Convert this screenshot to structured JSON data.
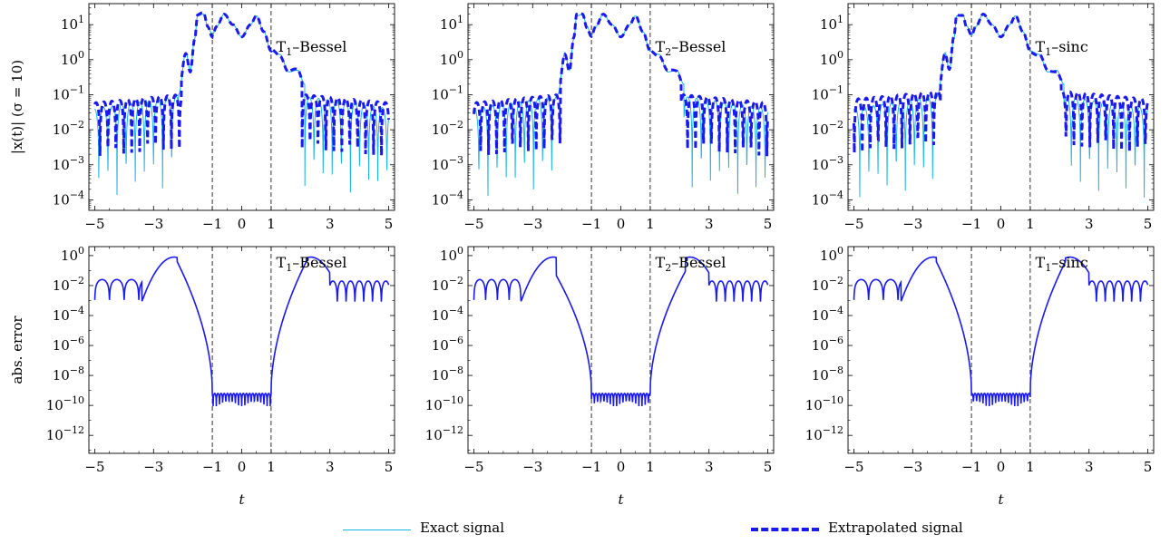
{
  "chart_data": {
    "type": "line",
    "legend": {
      "position": "bottom",
      "items": [
        {
          "label": "Exact signal",
          "color": "#1ab3e6",
          "style": "solid thin"
        },
        {
          "label": "Extrapolated signal",
          "color": "#1a1aee",
          "style": "dashed thick"
        }
      ]
    },
    "rows": [
      {
        "ylabel": "|x(t)| (σ = 10)",
        "ylim_exp": [
          -4.3,
          1.6
        ],
        "y_ticks": [
          {
            "exp": 1,
            "base": "10",
            "sup": "1"
          },
          {
            "exp": 0,
            "base": "10",
            "sup": "0"
          },
          {
            "exp": -1,
            "base": "10",
            "sup": "−1"
          },
          {
            "exp": -2,
            "base": "10",
            "sup": "−2"
          },
          {
            "exp": -3,
            "base": "10",
            "sup": "−3"
          },
          {
            "exp": -4,
            "base": "10",
            "sup": "−4"
          }
        ]
      },
      {
        "ylabel": "abs. error",
        "ylim_exp": [
          -13.2,
          0.6
        ],
        "y_ticks": [
          {
            "exp": 0,
            "base": "10",
            "sup": "0"
          },
          {
            "exp": -2,
            "base": "10",
            "sup": "−2"
          },
          {
            "exp": -4,
            "base": "10",
            "sup": "−4"
          },
          {
            "exp": -6,
            "base": "10",
            "sup": "−6"
          },
          {
            "exp": -8,
            "base": "10",
            "sup": "−8"
          },
          {
            "exp": -10,
            "base": "10",
            "sup": "−10"
          },
          {
            "exp": -12,
            "base": "10",
            "sup": "−12"
          }
        ]
      }
    ],
    "xlabel": "t",
    "xlim": [
      -5.2,
      5.2
    ],
    "x_ticks": [
      -5,
      -3,
      -1,
      0,
      1,
      3,
      5
    ],
    "x_tick_labels": [
      "−5",
      "−3",
      "−1",
      "0",
      "1",
      "3",
      "5"
    ],
    "vlines": [
      -1,
      1
    ],
    "panels": [
      {
        "col": 0,
        "main": "T",
        "sub": "1",
        "suffix": "–Bessel"
      },
      {
        "col": 1,
        "main": "T",
        "sub": "2",
        "suffix": "–Bessel"
      },
      {
        "col": 2,
        "main": "T",
        "sub": "1",
        "suffix": "–sinc"
      }
    ],
    "signal_top_row": {
      "description_free": true,
      "x": [
        -2.15,
        -1.9,
        -1.75,
        -1.6,
        -1.5,
        -1.3,
        -1.15,
        -1.0,
        -0.85,
        -0.6,
        -0.3,
        0.0,
        0.3,
        0.5,
        0.75,
        1.0,
        1.3,
        1.6,
        1.9,
        2.15
      ],
      "y_log10": [
        -1.0,
        0.2,
        -0.3,
        0.6,
        1.25,
        1.3,
        0.95,
        0.7,
        0.95,
        1.3,
        1.0,
        0.65,
        1.0,
        1.25,
        0.8,
        0.25,
        0.15,
        -0.35,
        -0.3,
        -0.7
      ]
    }
  }
}
